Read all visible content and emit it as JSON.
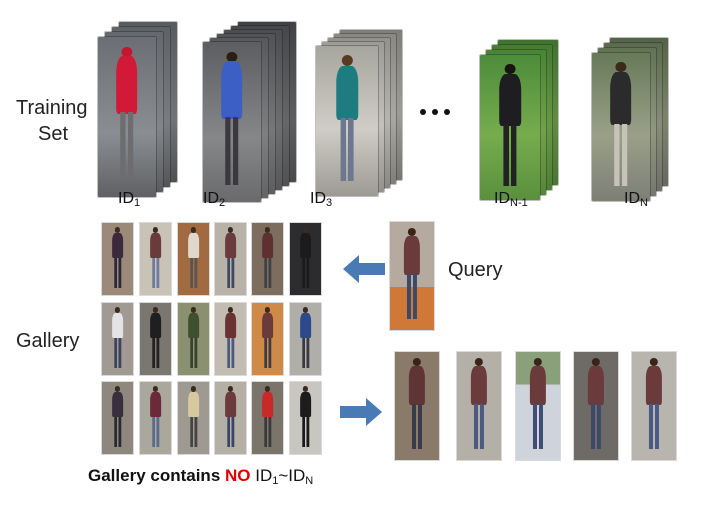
{
  "labels": {
    "training_line1": "Training",
    "training_line2": "Set",
    "gallery": "Gallery",
    "query": "Query"
  },
  "training_ids": [
    {
      "base": "ID",
      "sub": "1"
    },
    {
      "base": "ID",
      "sub": "2"
    },
    {
      "base": "ID",
      "sub": "3"
    },
    {
      "base": "ID",
      "sub": "N-1"
    },
    {
      "base": "ID",
      "sub": "N"
    }
  ],
  "caption": {
    "prefix": "Gallery contains ",
    "highlight": "NO",
    "ids_base1": "ID",
    "ids_sub1": "1",
    "ids_sep": "~",
    "ids_base2": "ID",
    "ids_sub2": "N"
  },
  "colors": {
    "arrow": "#4a7ab5",
    "highlight": "#e00000"
  },
  "icons": {
    "ellipsis": "ellipsis-dots",
    "left_arrow": "arrow-left-icon",
    "right_arrow": "arrow-right-icon"
  }
}
